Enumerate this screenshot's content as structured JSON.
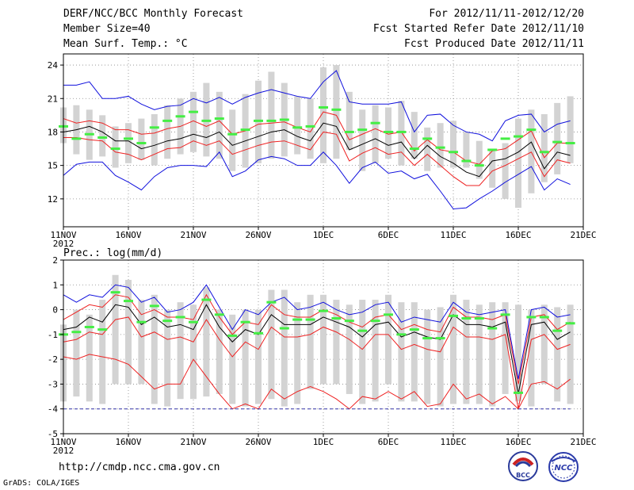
{
  "header": {
    "title": "DERF/NCC/BCC Monthly Forecast",
    "member_size": "Member Size=40",
    "variable_temp": "Mean Surf. Temp.: °C",
    "fcst_period": "For 2012/11/11-2012/12/20",
    "fcst_started": "Fcst Started Refer Date 2012/11/10",
    "fcst_produced": "Fcst Produced Date 2012/11/11"
  },
  "footer": {
    "url": "http://cmdp.ncc.cma.gov.cn",
    "grads": "GrADS: COLA/IGES",
    "logo_bcc": "BCC",
    "logo_ncc": "NCC"
  },
  "colors": {
    "box": "#d3d3d3",
    "climatology": "#44ee44",
    "mean": "#000000",
    "spread": "#ee2222",
    "extreme": "#1010dd",
    "grid": "#888888"
  },
  "chart_data": [
    {
      "type": "line",
      "title": "Mean Surf. Temp.: °C",
      "x_tick_labels": [
        "11NOV",
        "16NOV",
        "21NOV",
        "26NOV",
        "1DEC",
        "6DEC",
        "11DEC",
        "16DEC",
        "21DEC"
      ],
      "x_year_label": "2012",
      "x_tick_days": [
        1,
        6,
        11,
        16,
        21,
        26,
        31,
        36,
        41
      ],
      "xlim": [
        1,
        41
      ],
      "ylim": [
        9.5,
        25
      ],
      "y_ticks": [
        12,
        15,
        18,
        21,
        24
      ],
      "days": [
        1,
        2,
        3,
        4,
        5,
        6,
        7,
        8,
        9,
        10,
        11,
        12,
        13,
        14,
        15,
        16,
        17,
        18,
        19,
        20,
        21,
        22,
        23,
        24,
        25,
        26,
        27,
        28,
        29,
        30,
        31,
        32,
        33,
        34,
        35,
        36,
        37,
        38,
        39,
        40
      ],
      "box_low": [
        17.0,
        16.0,
        15.5,
        15.8,
        14.8,
        15.2,
        15.5,
        15.0,
        15.6,
        16.0,
        16.2,
        15.8,
        15.6,
        14.5,
        14.8,
        15.2,
        15.6,
        15.8,
        16.0,
        15.6,
        15.2,
        15.6,
        16.4,
        14.5,
        15.2,
        15.6,
        15.0,
        15.6,
        14.5,
        14.8,
        14.8,
        14.8,
        13.8,
        13.0,
        12.0,
        11.2,
        12.5,
        13.5,
        14.2,
        15.2
      ],
      "box_high": [
        20.2,
        20.4,
        20.0,
        19.5,
        18.5,
        18.8,
        19.2,
        19.6,
        20.4,
        21.0,
        21.6,
        22.4,
        21.6,
        20.0,
        21.4,
        22.6,
        23.4,
        22.4,
        21.2,
        21.0,
        23.8,
        24.0,
        21.6,
        20.0,
        20.4,
        20.2,
        20.8,
        19.8,
        18.4,
        18.8,
        19.0,
        18.0,
        17.2,
        16.4,
        17.0,
        19.2,
        20.0,
        19.6,
        20.6,
        21.2
      ],
      "climatology": [
        18.5,
        17.4,
        17.8,
        17.5,
        16.5,
        17.4,
        17.0,
        18.4,
        19.0,
        19.4,
        19.8,
        19.0,
        19.2,
        17.8,
        18.2,
        19.0,
        19.0,
        19.1,
        18.4,
        18.5,
        20.2,
        20.0,
        18.0,
        18.2,
        18.8,
        18.0,
        18.0,
        16.5,
        17.4,
        16.6,
        16.2,
        15.4,
        15.0,
        16.4,
        17.4,
        17.6,
        18.2,
        16.2,
        17.1,
        17.0
      ],
      "series": [
        {
          "name": "ensemble-max",
          "role": "extreme",
          "values": [
            22.2,
            22.2,
            22.5,
            21.0,
            21.0,
            21.2,
            20.5,
            20.0,
            20.3,
            20.4,
            21.0,
            20.6,
            21.1,
            20.5,
            21.1,
            21.5,
            21.8,
            21.5,
            21.2,
            21.0,
            22.5,
            23.5,
            20.7,
            20.5,
            20.5,
            20.5,
            20.7,
            18.0,
            19.5,
            19.6,
            18.6,
            18.0,
            17.8,
            17.2,
            19.0,
            19.5,
            19.6,
            18.0,
            18.7,
            19.0
          ]
        },
        {
          "name": "mean-plus-spread",
          "role": "spread",
          "values": [
            19.2,
            18.8,
            19.0,
            18.8,
            18.2,
            18.2,
            17.8,
            17.9,
            18.3,
            18.5,
            19.0,
            18.5,
            19.0,
            17.8,
            18.1,
            18.7,
            18.8,
            18.9,
            18.4,
            18.0,
            19.8,
            19.5,
            17.3,
            17.8,
            18.3,
            17.8,
            18.0,
            16.3,
            17.3,
            16.4,
            16.2,
            15.4,
            15.1,
            16.3,
            16.5,
            17.3,
            18.1,
            15.7,
            17.0,
            17.0
          ]
        },
        {
          "name": "ensemble-mean",
          "role": "mean",
          "values": [
            18.0,
            18.2,
            18.5,
            18.0,
            17.2,
            17.2,
            16.5,
            16.8,
            17.2,
            17.4,
            17.8,
            17.5,
            18.0,
            16.8,
            17.2,
            17.6,
            18.0,
            18.2,
            17.6,
            17.2,
            18.8,
            18.5,
            16.4,
            16.9,
            17.4,
            16.8,
            17.1,
            15.6,
            16.8,
            15.8,
            15.2,
            14.4,
            14.0,
            15.4,
            15.6,
            16.2,
            17.1,
            14.7,
            16.2,
            15.9
          ]
        },
        {
          "name": "mean-minus-spread",
          "role": "spread",
          "values": [
            17.5,
            17.5,
            17.3,
            17.2,
            16.2,
            16.0,
            15.5,
            16.0,
            16.5,
            16.6,
            17.2,
            16.8,
            17.2,
            16.0,
            16.4,
            16.8,
            17.1,
            17.2,
            16.8,
            16.4,
            18.0,
            17.8,
            15.4,
            16.1,
            16.6,
            16.0,
            16.2,
            15.0,
            16.0,
            15.0,
            14.0,
            13.2,
            13.2,
            14.5,
            15.0,
            15.6,
            16.2,
            14.0,
            15.5,
            15.2
          ]
        },
        {
          "name": "ensemble-min",
          "role": "extreme",
          "values": [
            14.1,
            15.1,
            15.3,
            15.3,
            14.1,
            13.5,
            12.8,
            14.0,
            14.8,
            15.0,
            15.0,
            14.9,
            16.2,
            14.0,
            14.5,
            15.5,
            15.8,
            15.6,
            15.0,
            15.0,
            16.2,
            15.0,
            13.4,
            14.8,
            15.3,
            14.3,
            14.5,
            13.8,
            14.2,
            12.7,
            11.1,
            11.2,
            12.0,
            12.7,
            13.5,
            14.2,
            14.9,
            12.8,
            13.8,
            13.3
          ]
        }
      ]
    },
    {
      "type": "line",
      "title": "Prec.: log(mm/d)",
      "x_tick_labels": [
        "11NOV",
        "16NOV",
        "21NOV",
        "26NOV",
        "1DEC",
        "6DEC",
        "11DEC",
        "16DEC",
        "21DEC"
      ],
      "x_year_label": "2012",
      "x_tick_days": [
        1,
        6,
        11,
        16,
        21,
        26,
        31,
        36,
        41
      ],
      "xlim": [
        1,
        41
      ],
      "ylim": [
        -5,
        2
      ],
      "y_ticks": [
        -5,
        -4,
        -3,
        -2,
        -1,
        0,
        1,
        2
      ],
      "days": [
        1,
        2,
        3,
        4,
        5,
        6,
        7,
        8,
        9,
        10,
        11,
        12,
        13,
        14,
        15,
        16,
        17,
        18,
        19,
        20,
        21,
        22,
        23,
        24,
        25,
        26,
        27,
        28,
        29,
        30,
        31,
        32,
        33,
        34,
        35,
        36,
        37,
        38,
        39,
        40
      ],
      "box_low": [
        -3.7,
        -3.5,
        -3.7,
        -3.8,
        -3.0,
        -3.0,
        -3.0,
        -3.8,
        -3.9,
        -3.6,
        -3.6,
        -3.5,
        -3.4,
        -3.8,
        -3.9,
        -3.8,
        -3.6,
        -3.9,
        -3.8,
        -3.2,
        -3.0,
        -3.0,
        -3.4,
        -3.8,
        -3.7,
        -3.0,
        -3.7,
        -3.7,
        -3.8,
        -3.9,
        -3.8,
        -3.8,
        -3.8,
        -3.9,
        -3.4,
        -3.7,
        -3.9,
        -3.0,
        -3.7,
        -3.8
      ],
      "box_high": [
        -0.6,
        0.0,
        -0.2,
        0.4,
        1.4,
        1.2,
        0.4,
        0.6,
        0.0,
        0.3,
        0.2,
        0.9,
        0.0,
        -0.2,
        0.0,
        0.0,
        0.8,
        0.8,
        0.3,
        0.6,
        0.6,
        0.4,
        0.2,
        0.4,
        0.4,
        0.6,
        0.3,
        0.3,
        0.0,
        0.1,
        0.6,
        0.4,
        0.2,
        0.3,
        0.3,
        0.2,
        0.0,
        0.2,
        0.1,
        0.2
      ],
      "climatology": [
        -1.0,
        -0.9,
        -0.7,
        -0.8,
        0.7,
        0.35,
        -0.5,
        0.15,
        -0.45,
        -0.3,
        -0.5,
        0.4,
        -0.2,
        -1.05,
        -0.5,
        -0.95,
        0.3,
        -0.75,
        -0.4,
        -0.4,
        -0.05,
        -0.35,
        -0.45,
        -0.85,
        -0.45,
        -0.2,
        -1.0,
        -0.8,
        -1.15,
        -1.15,
        -0.25,
        -0.35,
        -0.35,
        -0.75,
        -0.2,
        -3.35,
        -0.3,
        -0.3,
        -0.85,
        -0.55
      ],
      "series": [
        {
          "name": "ensemble-max",
          "role": "extreme",
          "values": [
            0.6,
            0.3,
            0.6,
            0.5,
            1.0,
            0.9,
            0.3,
            0.5,
            -0.1,
            0.0,
            0.3,
            1.0,
            0.1,
            -0.8,
            0.0,
            -0.2,
            0.3,
            0.5,
            0.0,
            0.1,
            0.3,
            0.0,
            -0.2,
            -0.1,
            0.2,
            0.3,
            -0.5,
            -0.3,
            -0.4,
            -0.5,
            0.3,
            -0.1,
            -0.2,
            -0.1,
            0.0,
            -2.8,
            0.0,
            0.1,
            -0.3,
            -0.2
          ]
        },
        {
          "name": "mean-plus-spread",
          "role": "spread",
          "values": [
            -0.4,
            -0.1,
            0.2,
            0.1,
            0.6,
            0.5,
            -0.2,
            0.0,
            -0.3,
            -0.3,
            -0.4,
            0.6,
            -0.3,
            -1.0,
            -0.5,
            -0.6,
            0.2,
            -0.2,
            -0.3,
            -0.3,
            0.0,
            -0.2,
            -0.5,
            -0.7,
            -0.3,
            -0.2,
            -0.8,
            -0.6,
            -0.8,
            -0.9,
            0.1,
            -0.3,
            -0.3,
            -0.4,
            -0.2,
            -3.0,
            -0.3,
            -0.2,
            -0.8,
            -0.5
          ]
        },
        {
          "name": "ensemble-mean",
          "role": "mean",
          "values": [
            -0.8,
            -0.7,
            -0.3,
            -0.5,
            0.2,
            0.1,
            -0.6,
            -0.3,
            -0.7,
            -0.6,
            -0.8,
            0.2,
            -0.7,
            -1.3,
            -0.8,
            -1.0,
            -0.2,
            -0.6,
            -0.6,
            -0.6,
            -0.3,
            -0.5,
            -0.7,
            -1.1,
            -0.6,
            -0.5,
            -1.1,
            -0.9,
            -1.1,
            -1.2,
            -0.2,
            -0.6,
            -0.6,
            -0.7,
            -0.5,
            -3.4,
            -0.6,
            -0.5,
            -1.2,
            -0.9
          ]
        },
        {
          "name": "mean-minus-spread",
          "role": "spread",
          "values": [
            -1.3,
            -1.2,
            -0.9,
            -1.0,
            -0.4,
            -0.3,
            -1.1,
            -0.9,
            -1.2,
            -1.1,
            -1.3,
            -0.4,
            -1.2,
            -1.9,
            -1.3,
            -1.6,
            -0.7,
            -1.1,
            -1.1,
            -1.0,
            -0.7,
            -0.9,
            -1.2,
            -1.6,
            -1.0,
            -1.0,
            -1.6,
            -1.4,
            -1.6,
            -1.7,
            -0.7,
            -1.1,
            -1.1,
            -1.2,
            -1.0,
            -4.0,
            -1.2,
            -1.0,
            -1.6,
            -1.4
          ]
        },
        {
          "name": "ensemble-min",
          "role": "spread",
          "values": [
            -1.9,
            -2.0,
            -1.8,
            -1.9,
            -2.0,
            -2.2,
            -2.7,
            -3.2,
            -3.0,
            -3.0,
            -2.0,
            -2.7,
            -3.4,
            -4.0,
            -3.8,
            -4.0,
            -3.2,
            -3.6,
            -3.3,
            -3.1,
            -3.3,
            -3.6,
            -4.0,
            -3.5,
            -3.6,
            -3.3,
            -3.6,
            -3.3,
            -3.9,
            -3.8,
            -3.0,
            -3.6,
            -3.4,
            -3.8,
            -3.5,
            -4.0,
            -3.0,
            -2.9,
            -3.2,
            -2.8
          ]
        },
        {
          "name": "floor",
          "role": "floor",
          "values": [
            -4,
            -4,
            -4,
            -4,
            -4,
            -4,
            -4,
            -4,
            -4,
            -4,
            -4,
            -4,
            -4,
            -4,
            -4,
            -4,
            -4,
            -4,
            -4,
            -4,
            -4,
            -4,
            -4,
            -4,
            -4,
            -4,
            -4,
            -4,
            -4,
            -4,
            -4,
            -4,
            -4,
            -4,
            -4,
            -4,
            -4,
            -4,
            -4,
            -4
          ]
        }
      ]
    }
  ]
}
